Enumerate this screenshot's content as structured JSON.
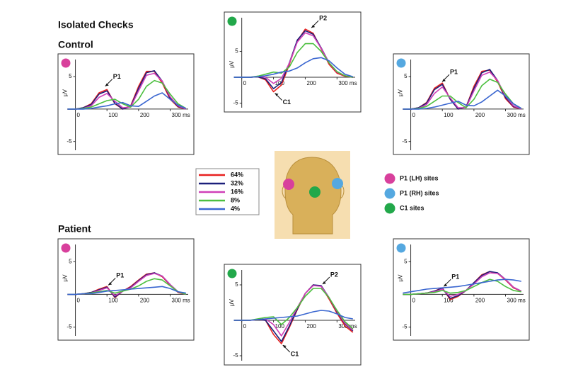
{
  "title": "Isolated Checks",
  "groups": [
    "Control",
    "Patient"
  ],
  "series_legend": [
    {
      "name": "64%",
      "color": "#e8211f"
    },
    {
      "name": "32%",
      "color": "#1b1f7a"
    },
    {
      "name": "16%",
      "color": "#d040b8"
    },
    {
      "name": "8%",
      "color": "#4cbf3f"
    },
    {
      "name": "4%",
      "color": "#3a66d0"
    }
  ],
  "site_legend": [
    {
      "label": "P1 (LH) sites",
      "color": "#d8409c"
    },
    {
      "label": "P1 (RH) sites",
      "color": "#55a8e0"
    },
    {
      "label": "C1 sites",
      "color": "#22a84a"
    }
  ],
  "chart_data": [
    {
      "type": "line",
      "marker_color": "#d8409c",
      "ylabel": "μV",
      "xlim": [
        -55,
        375
      ],
      "ylim": [
        -7,
        8.5
      ],
      "xticks": [
        0,
        100,
        200,
        {
          "value": 300,
          "label": "300 ms"
        }
      ],
      "yticks": [
        5,
        -5
      ],
      "x": [
        -25,
        0,
        25,
        50,
        75,
        100,
        125,
        150,
        175,
        200,
        225,
        250,
        275,
        300,
        325,
        350
      ],
      "series": [
        {
          "values": [
            0,
            0,
            0.2,
            0.8,
            2.5,
            3.0,
            0.8,
            0,
            0.5,
            3.5,
            5.8,
            5.8,
            4,
            1.5,
            0.3,
            0
          ]
        },
        {
          "values": [
            0,
            0,
            0.2,
            0.7,
            2.3,
            2.8,
            0.9,
            0,
            0.4,
            3.2,
            5.6,
            5.9,
            4.3,
            1.7,
            0.4,
            0
          ]
        },
        {
          "values": [
            0,
            0,
            0.1,
            0.5,
            1.8,
            2.4,
            1.2,
            0.2,
            0.3,
            2.8,
            5.2,
            5.5,
            4.3,
            1.9,
            0.5,
            0
          ]
        },
        {
          "values": [
            0,
            0,
            0.1,
            0.3,
            0.8,
            1.3,
            1.5,
            0.8,
            0.3,
            1.5,
            3.5,
            4.4,
            4.0,
            2.3,
            0.8,
            0.1
          ]
        },
        {
          "values": [
            0,
            0,
            0,
            0.1,
            0.3,
            0.5,
            0.8,
            1.0,
            0.5,
            0.4,
            1.2,
            2.0,
            2.5,
            1.5,
            0.6,
            0.1
          ]
        }
      ],
      "annotations": [
        {
          "text": "P1",
          "x": 90,
          "y": 3.3
        }
      ]
    },
    {
      "type": "line",
      "marker_color": "#22a84a",
      "ylabel": "μV",
      "xlim": [
        -55,
        375
      ],
      "ylim": [
        -6.7,
        12.6
      ],
      "xticks": [
        0,
        100,
        200,
        {
          "value": 300,
          "label": "300 ms"
        }
      ],
      "yticks": [
        5,
        -5
      ],
      "x": [
        -25,
        0,
        25,
        50,
        75,
        100,
        125,
        150,
        175,
        200,
        225,
        250,
        275,
        300,
        325,
        350
      ],
      "series": [
        {
          "values": [
            0,
            0,
            0,
            0.1,
            -0.5,
            -2.8,
            -1.5,
            2.5,
            7,
            9.3,
            8.5,
            5.5,
            2.5,
            0.8,
            0.2,
            0
          ]
        },
        {
          "values": [
            0,
            0,
            0,
            0.1,
            -0.3,
            -2.2,
            -1,
            2.8,
            7.2,
            9.0,
            8.3,
            5.7,
            2.8,
            1,
            0.3,
            0
          ]
        },
        {
          "values": [
            0,
            0,
            0,
            0.2,
            0,
            -1.2,
            -0.2,
            2.7,
            6.8,
            8.6,
            8.0,
            5.6,
            2.8,
            1,
            0.3,
            0
          ]
        },
        {
          "values": [
            0,
            0,
            0,
            0.2,
            0.6,
            1.0,
            0.8,
            2.0,
            4.8,
            6.5,
            6.5,
            5.0,
            2.8,
            1.1,
            0.3,
            0
          ]
        },
        {
          "values": [
            0,
            0,
            0,
            0.1,
            0.3,
            0.6,
            1.0,
            1.2,
            1.8,
            2.8,
            3.6,
            3.8,
            3.2,
            1.8,
            0.6,
            0.1
          ]
        }
      ],
      "annotations": [
        {
          "text": "P2",
          "x": 215,
          "y": 9.3
        },
        {
          "text": "C1",
          "x": 100,
          "y": -2.8
        }
      ]
    },
    {
      "type": "line",
      "marker_color": "#55a8e0",
      "ylabel": "μV",
      "xlim": [
        -55,
        375
      ],
      "ylim": [
        -7,
        8.5
      ],
      "xticks": [
        0,
        100,
        200,
        {
          "value": 300,
          "label": "300 ms"
        }
      ],
      "yticks": [
        5,
        -5
      ],
      "x": [
        -25,
        0,
        25,
        50,
        75,
        100,
        125,
        150,
        175,
        200,
        225,
        250,
        275,
        300,
        325,
        350
      ],
      "series": [
        {
          "values": [
            0,
            0,
            0.2,
            1,
            3.2,
            4.0,
            1.5,
            0,
            0.3,
            3.5,
            5.8,
            6.0,
            4.2,
            1.6,
            0.3,
            0
          ]
        },
        {
          "values": [
            0,
            0,
            0.2,
            0.9,
            3.0,
            3.8,
            1.5,
            0,
            0.3,
            3.2,
            5.6,
            6.1,
            4.4,
            1.8,
            0.4,
            0
          ]
        },
        {
          "values": [
            0,
            0,
            0.1,
            0.7,
            2.4,
            3.4,
            1.7,
            0.2,
            0.2,
            2.8,
            5.2,
            5.7,
            4.4,
            2.0,
            0.5,
            0
          ]
        },
        {
          "values": [
            0,
            0,
            0.1,
            0.4,
            1.2,
            2.0,
            2.0,
            1.0,
            0.2,
            1.5,
            3.6,
            4.6,
            4.1,
            2.3,
            0.8,
            0.1
          ]
        },
        {
          "values": [
            0,
            0,
            0,
            0.1,
            0.3,
            0.6,
            0.9,
            1.2,
            0.6,
            0.5,
            1.1,
            2.0,
            2.9,
            2.0,
            0.8,
            0.1
          ]
        }
      ],
      "annotations": [
        {
          "text": "P1",
          "x": 95,
          "y": 4.0
        }
      ]
    },
    {
      "type": "line",
      "marker_color": "#d8409c",
      "ylabel": "μV",
      "xlim": [
        -55,
        375
      ],
      "ylim": [
        -7,
        8.5
      ],
      "xticks": [
        0,
        100,
        200,
        {
          "value": 300,
          "label": "300 ms"
        }
      ],
      "yticks": [
        5,
        -5
      ],
      "x": [
        -25,
        0,
        25,
        50,
        75,
        100,
        125,
        150,
        175,
        200,
        225,
        250,
        275,
        300,
        325,
        350
      ],
      "series": [
        {
          "values": [
            0,
            0,
            0.1,
            0.3,
            0.8,
            1.2,
            -0.5,
            0.5,
            1.2,
            2.2,
            3.1,
            3.3,
            2.7,
            1.4,
            0.3,
            0
          ]
        },
        {
          "values": [
            0,
            0,
            0.1,
            0.3,
            0.7,
            1.1,
            -0.4,
            0.5,
            1.1,
            2.1,
            3.0,
            3.3,
            2.8,
            1.5,
            0.4,
            0
          ]
        },
        {
          "values": [
            0,
            0,
            0.1,
            0.2,
            0.6,
            1.0,
            -0.2,
            0.5,
            1.0,
            2.0,
            2.9,
            3.2,
            2.8,
            1.5,
            0.4,
            0
          ]
        },
        {
          "values": [
            0,
            0,
            0.1,
            0.2,
            0.4,
            0.6,
            0.2,
            0.5,
            0.8,
            1.3,
            2.0,
            2.4,
            2.2,
            1.3,
            0.4,
            0
          ]
        },
        {
          "values": [
            0,
            0,
            0.1,
            0.1,
            0.3,
            0.5,
            0.6,
            0.7,
            0.8,
            0.9,
            1.0,
            1.1,
            1.2,
            0.9,
            0.4,
            0.2
          ]
        }
      ],
      "annotations": [
        {
          "text": "P1",
          "x": 100,
          "y": 1.2
        }
      ]
    },
    {
      "type": "line",
      "marker_color": "#22a84a",
      "ylabel": "μV",
      "xlim": [
        -55,
        375
      ],
      "ylim": [
        -6.3,
        7.9
      ],
      "xticks": [
        0,
        100,
        200,
        {
          "value": 300,
          "label": "300 ms"
        }
      ],
      "yticks": [
        5,
        -5
      ],
      "x": [
        -25,
        0,
        25,
        50,
        75,
        100,
        125,
        150,
        175,
        200,
        225,
        250,
        275,
        300,
        325,
        350
      ],
      "series": [
        {
          "values": [
            0,
            0,
            0,
            0.1,
            0,
            -2,
            -3.3,
            -1,
            1.5,
            3.8,
            5.0,
            4.8,
            3.0,
            1.0,
            -0.8,
            -1.7
          ]
        },
        {
          "values": [
            0,
            0,
            0,
            0.1,
            0,
            -1.5,
            -3.0,
            -0.8,
            1.6,
            3.8,
            5.0,
            4.9,
            3.2,
            1.2,
            -0.5,
            -1.5
          ]
        },
        {
          "values": [
            0,
            0,
            0,
            0.1,
            0.2,
            -0.6,
            -2.2,
            -0.3,
            1.8,
            3.8,
            4.9,
            4.8,
            3.2,
            1.3,
            -0.4,
            -1.4
          ]
        },
        {
          "values": [
            0,
            0,
            0,
            0.2,
            0.4,
            0.5,
            -0.6,
            0.4,
            1.8,
            3.4,
            4.5,
            4.5,
            3.2,
            1.4,
            -0.2,
            -1.2
          ]
        },
        {
          "values": [
            0,
            0,
            0,
            0.1,
            0.2,
            0.3,
            0.4,
            0.5,
            0.6,
            0.9,
            1.2,
            1.4,
            1.3,
            0.9,
            0.4,
            0.2
          ]
        }
      ],
      "annotations": [
        {
          "text": "P2",
          "x": 250,
          "y": 4.9
        },
        {
          "text": "C1",
          "x": 125,
          "y": -3.3
        }
      ]
    },
    {
      "type": "line",
      "marker_color": "#55a8e0",
      "ylabel": "μV",
      "xlim": [
        -55,
        375
      ],
      "ylim": [
        -7,
        8.5
      ],
      "xticks": [
        0,
        100,
        200,
        {
          "value": 300,
          "label": "300 ms"
        }
      ],
      "yticks": [
        5,
        -5
      ],
      "x": [
        -25,
        0,
        25,
        50,
        75,
        100,
        125,
        150,
        175,
        200,
        225,
        250,
        275,
        300,
        325,
        350
      ],
      "series": [
        {
          "values": [
            0,
            0,
            0.1,
            0.2,
            0.5,
            1.0,
            -0.8,
            -0.3,
            0.6,
            1.8,
            3.0,
            3.5,
            3.2,
            2.2,
            1.0,
            0.5
          ]
        },
        {
          "values": [
            0,
            0,
            0.1,
            0.2,
            0.5,
            0.9,
            -0.6,
            -0.2,
            0.6,
            1.8,
            2.9,
            3.5,
            3.3,
            2.3,
            1.1,
            0.5
          ]
        },
        {
          "values": [
            0,
            0,
            0.1,
            0.2,
            0.4,
            0.8,
            -0.3,
            0,
            0.6,
            1.6,
            2.7,
            3.3,
            3.2,
            2.3,
            1.1,
            0.5
          ]
        },
        {
          "values": [
            0,
            0,
            0.1,
            0.2,
            0.3,
            0.6,
            0.2,
            0.3,
            0.6,
            1.2,
            1.8,
            2.3,
            2.0,
            1.2,
            0.6,
            0.4
          ]
        },
        {
          "values": [
            0.2,
            0.4,
            0.6,
            0.8,
            0.9,
            1.0,
            1.1,
            1.2,
            1.4,
            1.6,
            1.8,
            2.0,
            2.2,
            2.3,
            2.2,
            2.0
          ]
        }
      ],
      "annotations": [
        {
          "text": "P1",
          "x": 100,
          "y": 1.0
        }
      ]
    }
  ]
}
